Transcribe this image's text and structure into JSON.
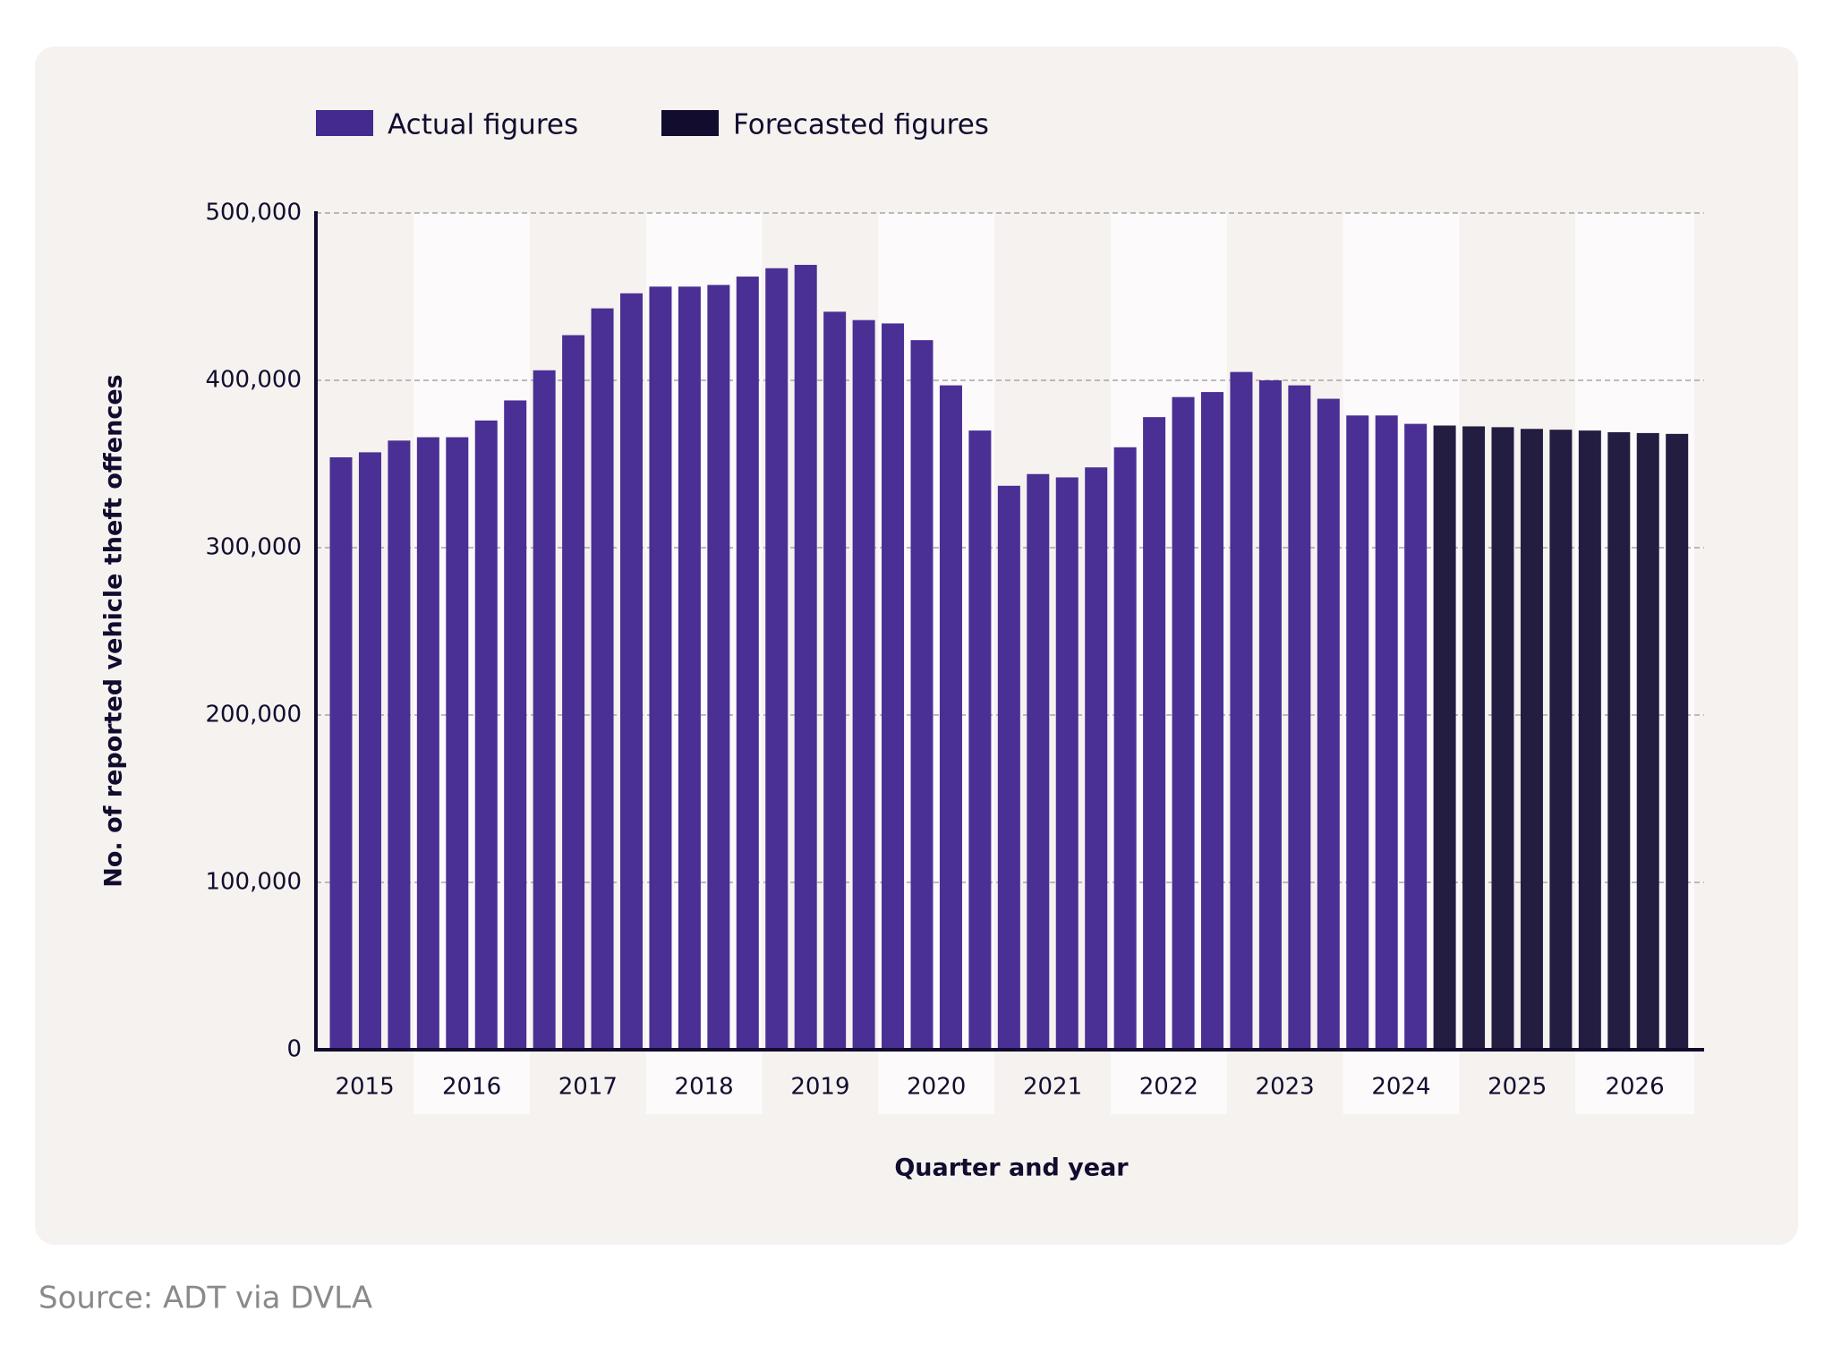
{
  "chart_data": {
    "type": "bar",
    "y_label": "No. of reported vehicle theft offences",
    "x_label": "Quarter and year",
    "source": "Source: ADT via DVLA",
    "categories": [
      "2015",
      null,
      null,
      "2016",
      null,
      null,
      null,
      "2017",
      null,
      null,
      null,
      "2018",
      null,
      null,
      null,
      "2019",
      null,
      null,
      null,
      "2020",
      null,
      null,
      null,
      "2021",
      null,
      null,
      null,
      "2022",
      null,
      null,
      null,
      "2023",
      null,
      null,
      null,
      "2024",
      null,
      null,
      null,
      "2025",
      null,
      null,
      null,
      "2026",
      null,
      null,
      null
    ],
    "series": [
      {
        "name": "Actual figures",
        "color": "#4a2f94",
        "legend_color": "#422a8e",
        "values": [
          354000,
          357000,
          364000,
          366000,
          366000,
          376000,
          388000,
          406000,
          427000,
          443000,
          452000,
          456000,
          456000,
          457000,
          462000,
          467000,
          469000,
          441000,
          436000,
          434000,
          424000,
          397000,
          370000,
          337000,
          344000,
          342000,
          348000,
          360000,
          378000,
          390000,
          393000,
          405000,
          400000,
          397000,
          389000,
          379000,
          379000,
          374000,
          null,
          null,
          null,
          null,
          null,
          null,
          null,
          null,
          null
        ]
      },
      {
        "name": "Forecasted figures",
        "color": "#231d42",
        "legend_color": "#120c2e",
        "values": [
          null,
          null,
          null,
          null,
          null,
          null,
          null,
          null,
          null,
          null,
          null,
          null,
          null,
          null,
          null,
          null,
          null,
          null,
          null,
          null,
          null,
          null,
          null,
          null,
          null,
          null,
          null,
          null,
          null,
          null,
          null,
          null,
          null,
          null,
          null,
          null,
          null,
          null,
          373000,
          372500,
          372000,
          371000,
          370500,
          370000,
          369000,
          368500,
          368000
        ]
      }
    ],
    "ylim": [
      0,
      500000
    ],
    "yticks": [
      0,
      {
        "value": 100000,
        "label": "100,000"
      },
      {
        "value": 200000,
        "label": "200,000"
      },
      {
        "value": 300000,
        "label": "300,000"
      },
      {
        "value": 400000,
        "label": "400,000"
      },
      {
        "value": 500000,
        "label": "500,000"
      }
    ],
    "grid": true
  }
}
